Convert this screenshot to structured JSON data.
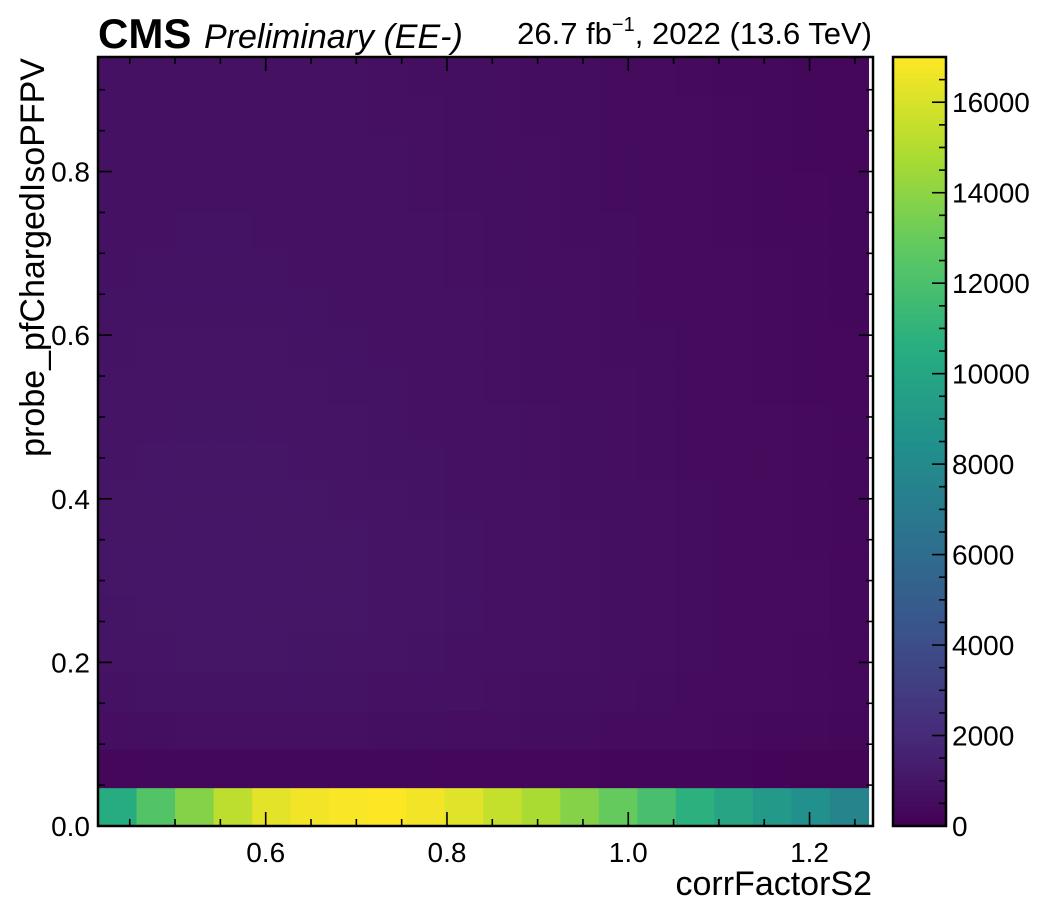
{
  "header": {
    "experiment": "CMS",
    "status": "Preliminary (EE-)",
    "lumi_value": "26.7 fb",
    "lumi_exp": "−1",
    "lumi_rest": ", 2022 (13.6 TeV)"
  },
  "chart_data": {
    "type": "heatmap",
    "xlabel": "corrFactorS2",
    "ylabel": "probe_pfChargedIsoPFPV",
    "xlim": [
      0.415,
      1.27
    ],
    "ylim": [
      0.0,
      0.94
    ],
    "x_bin_edges": [
      0.415,
      0.4575,
      0.5,
      0.5425,
      0.585,
      0.6275,
      0.67,
      0.7125,
      0.755,
      0.7975,
      0.84,
      0.8825,
      0.925,
      0.9675,
      1.01,
      1.0525,
      1.095,
      1.1375,
      1.18,
      1.2225,
      1.265
    ],
    "y_bin_edges": [
      0.0,
      0.047,
      0.094,
      0.141,
      0.188,
      0.235,
      0.282,
      0.329,
      0.376,
      0.423,
      0.47,
      0.517,
      0.564,
      0.611,
      0.658,
      0.705,
      0.752,
      0.799,
      0.846,
      0.893,
      0.94
    ],
    "x_ticks": [
      "0.6",
      "0.8",
      "1.0",
      "1.2"
    ],
    "x_tick_values": [
      0.6,
      0.8,
      1.0,
      1.2
    ],
    "y_ticks": [
      "0.0",
      "0.2",
      "0.4",
      "0.6",
      "0.8"
    ],
    "y_tick_values": [
      0.0,
      0.2,
      0.4,
      0.6,
      0.8
    ],
    "colorbar": {
      "colormap": "viridis",
      "range": [
        0,
        17000
      ],
      "ticks": [
        "0",
        "2000",
        "4000",
        "6000",
        "8000",
        "10000",
        "12000",
        "14000",
        "16000"
      ],
      "tick_values": [
        0,
        2000,
        4000,
        6000,
        8000,
        10000,
        12000,
        14000,
        16000
      ]
    },
    "values": [
      [
        10400,
        12300,
        13800,
        15300,
        16300,
        16700,
        16900,
        17000,
        16700,
        16200,
        15500,
        14800,
        13800,
        12900,
        11900,
        10800,
        9900,
        9100,
        8400,
        7600
      ],
      [
        300,
        320,
        340,
        350,
        350,
        350,
        340,
        330,
        320,
        310,
        300,
        290,
        280,
        260,
        250,
        230,
        220,
        200,
        190,
        170
      ],
      [
        650,
        700,
        720,
        740,
        740,
        730,
        720,
        700,
        680,
        650,
        620,
        590,
        560,
        530,
        500,
        470,
        440,
        410,
        380,
        350
      ],
      [
        800,
        850,
        870,
        880,
        880,
        870,
        860,
        840,
        810,
        780,
        740,
        700,
        660,
        620,
        580,
        540,
        500,
        460,
        420,
        380
      ],
      [
        900,
        940,
        960,
        970,
        960,
        950,
        930,
        910,
        880,
        840,
        800,
        760,
        710,
        670,
        620,
        580,
        540,
        500,
        450,
        400
      ],
      [
        950,
        990,
        1010,
        1010,
        1000,
        990,
        970,
        940,
        910,
        870,
        820,
        780,
        730,
        690,
        640,
        590,
        550,
        510,
        460,
        410
      ],
      [
        980,
        1010,
        1020,
        1020,
        1010,
        990,
        970,
        940,
        910,
        870,
        820,
        780,
        730,
        680,
        640,
        590,
        550,
        500,
        460,
        410
      ],
      [
        980,
        1000,
        1010,
        1010,
        1000,
        980,
        960,
        930,
        900,
        860,
        810,
        770,
        720,
        670,
        630,
        580,
        540,
        490,
        450,
        400
      ],
      [
        960,
        980,
        990,
        990,
        980,
        960,
        940,
        910,
        880,
        840,
        790,
        750,
        700,
        660,
        610,
        570,
        520,
        480,
        440,
        390
      ],
      [
        940,
        960,
        970,
        970,
        960,
        940,
        920,
        890,
        860,
        820,
        770,
        730,
        680,
        640,
        600,
        550,
        510,
        470,
        430,
        380
      ],
      [
        920,
        940,
        950,
        950,
        940,
        920,
        900,
        870,
        840,
        800,
        750,
        710,
        670,
        620,
        580,
        540,
        500,
        460,
        420,
        370
      ],
      [
        900,
        920,
        930,
        930,
        920,
        900,
        880,
        850,
        820,
        780,
        740,
        700,
        650,
        610,
        570,
        530,
        490,
        450,
        410,
        360
      ],
      [
        880,
        900,
        910,
        910,
        900,
        880,
        860,
        830,
        800,
        760,
        720,
        680,
        640,
        600,
        560,
        520,
        480,
        440,
        400,
        360
      ],
      [
        860,
        880,
        890,
        890,
        880,
        860,
        840,
        810,
        780,
        750,
        710,
        670,
        630,
        590,
        550,
        510,
        470,
        430,
        390,
        350
      ],
      [
        840,
        860,
        870,
        870,
        860,
        840,
        820,
        790,
        770,
        730,
        690,
        650,
        610,
        570,
        540,
        500,
        460,
        420,
        380,
        340
      ],
      [
        820,
        840,
        850,
        850,
        840,
        820,
        800,
        780,
        750,
        720,
        680,
        640,
        600,
        560,
        530,
        490,
        450,
        410,
        370,
        330
      ],
      [
        800,
        820,
        830,
        830,
        820,
        800,
        790,
        760,
        730,
        700,
        660,
        630,
        590,
        550,
        520,
        480,
        440,
        400,
        360,
        320
      ],
      [
        780,
        800,
        810,
        810,
        800,
        790,
        770,
        750,
        720,
        690,
        650,
        610,
        580,
        540,
        510,
        470,
        430,
        390,
        350,
        310
      ],
      [
        770,
        790,
        800,
        800,
        790,
        770,
        760,
        730,
        710,
        680,
        640,
        600,
        570,
        530,
        500,
        460,
        420,
        380,
        350,
        310
      ],
      [
        760,
        780,
        790,
        790,
        780,
        760,
        750,
        720,
        700,
        670,
        630,
        590,
        560,
        520,
        490,
        450,
        410,
        370,
        340,
        300
      ]
    ]
  }
}
